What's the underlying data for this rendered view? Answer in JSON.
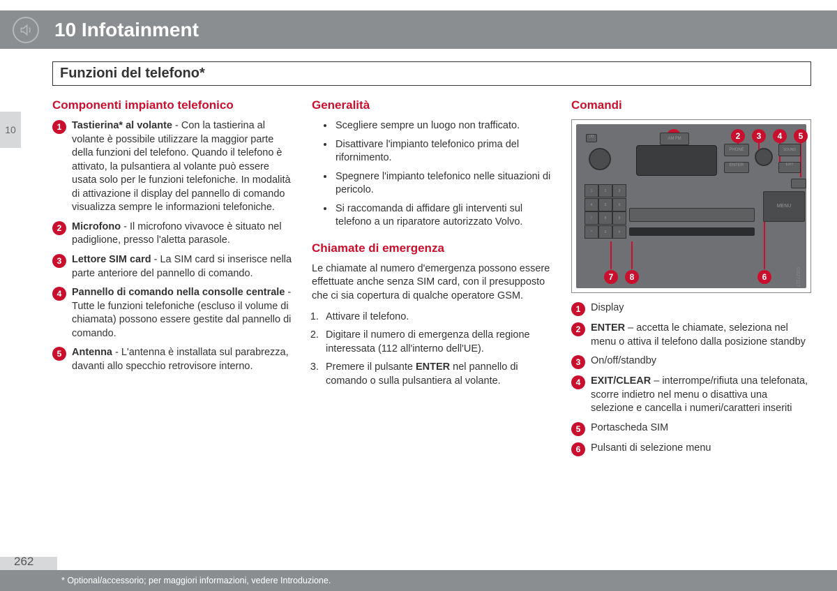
{
  "header": {
    "chapter": "10 Infotainment",
    "side_tab": "10"
  },
  "subtitle": "Funzioni del telefono*",
  "col1": {
    "heading": "Componenti impianto telefonico",
    "items": [
      {
        "n": "1",
        "bold": "Tastierina* al volante",
        "text": " - Con la tastierina al volante è possibile utilizzare la maggior parte della funzioni del telefono. Quando il telefono è attivato, la pulsantiera al volante può essere usata solo per le funzioni telefoniche. In modalità di attivazione il display del pannello di comando visualizza sempre le informazioni telefoniche."
      },
      {
        "n": "2",
        "bold": "Microfono",
        "text": " - Il microfono vivavoce è situato nel padiglione, presso l'aletta parasole."
      },
      {
        "n": "3",
        "bold": "Lettore SIM card",
        "text": " - La SIM card si inserisce nella parte anteriore del pannello di comando."
      },
      {
        "n": "4",
        "bold": "Pannello di comando nella consolle centrale",
        "text": " - Tutte le funzioni telefoniche (escluso il volume di chiamata) possono essere gestite dal pannello di comando."
      },
      {
        "n": "5",
        "bold": "Antenna",
        "text": " - L'antenna è installata sul parabrezza, davanti allo specchio retrovisore interno."
      }
    ]
  },
  "col2": {
    "heading1": "Generalità",
    "bullets": [
      "Scegliere sempre un luogo non trafficato.",
      "Disattivare l'impianto telefonico prima del rifornimento.",
      "Spegnere l'impianto telefonico nelle situazioni di pericolo.",
      "Si raccomanda di affidare gli interventi sul telefono a un riparatore autorizzato Volvo."
    ],
    "heading2": "Chiamate di emergenza",
    "para": "Le chiamate al numero d'emergenza possono essere effettuate anche senza SIM card, con il presupposto che ci sia copertura di qualche operatore GSM.",
    "steps": [
      "Attivare il telefono.",
      "Digitare il numero di emergenza della regione interessata (112 all'interno dell'UE).",
      "Premere il pulsante ENTER nel pannello di comando o sulla pulsantiera al volante."
    ],
    "step3_html": "Premere il pulsante <b>ENTER</b> nel pannello di comando o sulla pulsantiera al volante."
  },
  "col3": {
    "heading": "Comandi",
    "img_code": "G027117",
    "items": [
      {
        "n": "1",
        "bold": "",
        "text": "Display"
      },
      {
        "n": "2",
        "bold": "ENTER",
        "text": " – accetta le chiamate, seleziona nel menu o attiva il telefono dalla posizione standby"
      },
      {
        "n": "3",
        "bold": "",
        "text": "On/off/standby"
      },
      {
        "n": "4",
        "bold": "EXIT/CLEAR",
        "text": " – interrompe/rifiuta una telefonata, scorre indietro nel menu o disattiva una selezione e cancella i numeri/caratteri inseriti"
      },
      {
        "n": "5",
        "bold": "",
        "text": "Portascheda SIM"
      },
      {
        "n": "6",
        "bold": "",
        "text": "Pulsanti di selezione menu"
      }
    ],
    "callouts": [
      "1",
      "2",
      "3",
      "4",
      "5",
      "6",
      "7",
      "8"
    ]
  },
  "footer": {
    "page": "262",
    "note": "* Optional/accessorio; per maggiori informazioni, vedere Introduzione."
  },
  "colors": {
    "accent": "#c8102e",
    "header_bg": "#8b8e90",
    "side_bg": "#d7d8d9",
    "radio_bg": "#6e7073"
  }
}
